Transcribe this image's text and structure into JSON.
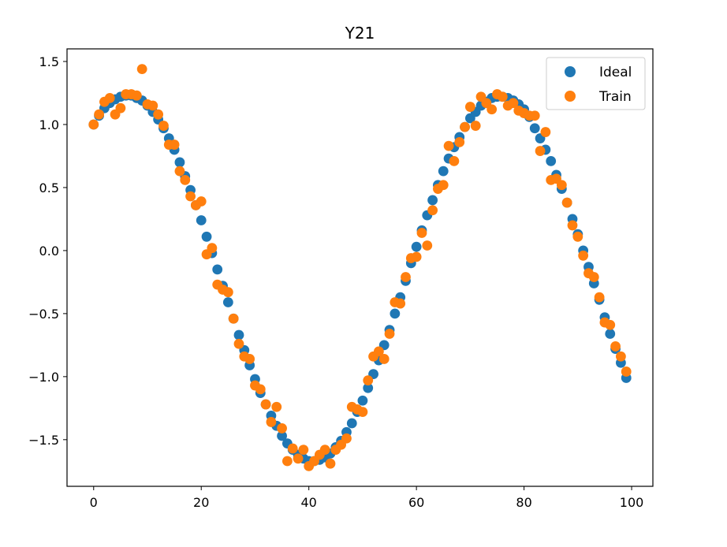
{
  "chart_data": {
    "type": "scatter",
    "title": "Y21",
    "xlabel": "",
    "ylabel": "",
    "xlim": [
      -4.95,
      103.95
    ],
    "ylim": [
      -1.87,
      1.6
    ],
    "x_ticks": [
      0,
      20,
      40,
      60,
      80,
      100
    ],
    "x_tick_labels": [
      "0",
      "20",
      "40",
      "60",
      "80",
      "100"
    ],
    "y_ticks": [
      -1.5,
      -1.0,
      -0.5,
      0.0,
      0.5,
      1.0,
      1.5
    ],
    "y_tick_labels": [
      "−1.5",
      "−1.0",
      "−0.5",
      "0.0",
      "0.5",
      "1.0",
      "1.5"
    ],
    "grid": false,
    "legend_position": "top-right",
    "series": [
      {
        "name": "Ideal",
        "color": "#1f77b4",
        "x": [
          0,
          1,
          2,
          3,
          4,
          5,
          6,
          7,
          8,
          9,
          10,
          11,
          12,
          13,
          14,
          15,
          16,
          17,
          18,
          19,
          20,
          21,
          22,
          23,
          24,
          25,
          26,
          27,
          28,
          29,
          30,
          31,
          32,
          33,
          34,
          35,
          36,
          37,
          38,
          39,
          40,
          41,
          42,
          43,
          44,
          45,
          46,
          47,
          48,
          49,
          50,
          51,
          52,
          53,
          54,
          55,
          56,
          57,
          58,
          59,
          60,
          61,
          62,
          63,
          64,
          65,
          66,
          67,
          68,
          69,
          70,
          71,
          72,
          73,
          74,
          75,
          76,
          77,
          78,
          79,
          80,
          81,
          82,
          83,
          84,
          85,
          86,
          87,
          88,
          89,
          90,
          91,
          92,
          93,
          94,
          95,
          96,
          97,
          98,
          99
        ],
        "y": [
          1.0,
          1.07,
          1.13,
          1.17,
          1.2,
          1.22,
          1.23,
          1.23,
          1.21,
          1.19,
          1.15,
          1.1,
          1.04,
          0.97,
          0.89,
          0.8,
          0.7,
          0.59,
          0.48,
          0.36,
          0.24,
          0.11,
          -0.02,
          -0.15,
          -0.28,
          -0.41,
          -0.54,
          -0.67,
          -0.79,
          -0.91,
          -1.02,
          -1.13,
          -1.22,
          -1.31,
          -1.39,
          -1.47,
          -1.53,
          -1.58,
          -1.62,
          -1.65,
          -1.67,
          -1.67,
          -1.66,
          -1.64,
          -1.61,
          -1.56,
          -1.51,
          -1.44,
          -1.37,
          -1.28,
          -1.19,
          -1.09,
          -0.98,
          -0.87,
          -0.75,
          -0.63,
          -0.5,
          -0.37,
          -0.24,
          -0.1,
          0.03,
          0.16,
          0.28,
          0.4,
          0.52,
          0.63,
          0.73,
          0.82,
          0.9,
          0.98,
          1.05,
          1.1,
          1.15,
          1.18,
          1.21,
          1.22,
          1.22,
          1.21,
          1.19,
          1.16,
          1.12,
          1.06,
          0.97,
          0.89,
          0.8,
          0.71,
          0.6,
          0.49,
          0.38,
          0.25,
          0.13,
          0.0,
          -0.13,
          -0.26,
          -0.39,
          -0.53,
          -0.66,
          -0.78,
          -0.89,
          -1.01
        ]
      },
      {
        "name": "Train",
        "color": "#ff7f0e",
        "x": [
          0,
          1,
          2,
          3,
          4,
          5,
          6,
          7,
          8,
          9,
          10,
          11,
          12,
          13,
          14,
          15,
          16,
          17,
          18,
          19,
          20,
          21,
          22,
          23,
          24,
          25,
          26,
          27,
          28,
          29,
          30,
          31,
          32,
          33,
          34,
          35,
          36,
          37,
          38,
          39,
          40,
          41,
          42,
          43,
          44,
          45,
          46,
          47,
          48,
          49,
          50,
          51,
          52,
          53,
          54,
          55,
          56,
          57,
          58,
          59,
          60,
          61,
          62,
          63,
          64,
          65,
          66,
          67,
          68,
          69,
          70,
          71,
          72,
          73,
          74,
          75,
          76,
          77,
          78,
          79,
          80,
          81,
          82,
          83,
          84,
          85,
          86,
          87,
          88,
          89,
          90,
          91,
          92,
          93,
          94,
          95,
          96,
          97,
          98,
          99
        ],
        "y": [
          1.0,
          1.08,
          1.18,
          1.21,
          1.08,
          1.13,
          1.24,
          1.24,
          1.23,
          1.44,
          1.16,
          1.15,
          1.08,
          0.99,
          0.84,
          0.84,
          0.63,
          0.56,
          0.43,
          0.36,
          0.39,
          -0.03,
          0.02,
          -0.27,
          -0.31,
          -0.33,
          -0.54,
          -0.74,
          -0.84,
          -0.86,
          -1.07,
          -1.1,
          -1.22,
          -1.36,
          -1.24,
          -1.41,
          -1.67,
          -1.57,
          -1.65,
          -1.58,
          -1.71,
          -1.67,
          -1.62,
          -1.58,
          -1.69,
          -1.58,
          -1.54,
          -1.49,
          -1.24,
          -1.26,
          -1.28,
          -1.03,
          -0.84,
          -0.8,
          -0.86,
          -0.66,
          -0.41,
          -0.42,
          -0.21,
          -0.06,
          -0.05,
          0.14,
          0.04,
          0.32,
          0.49,
          0.52,
          0.83,
          0.71,
          0.86,
          0.98,
          1.14,
          0.99,
          1.22,
          1.17,
          1.12,
          1.24,
          1.22,
          1.15,
          1.17,
          1.11,
          1.09,
          1.07,
          1.07,
          0.79,
          0.94,
          0.56,
          0.57,
          0.52,
          0.38,
          0.2,
          0.11,
          -0.04,
          -0.18,
          -0.21,
          -0.37,
          -0.57,
          -0.59,
          -0.76,
          -0.84,
          -0.96
        ]
      }
    ]
  }
}
